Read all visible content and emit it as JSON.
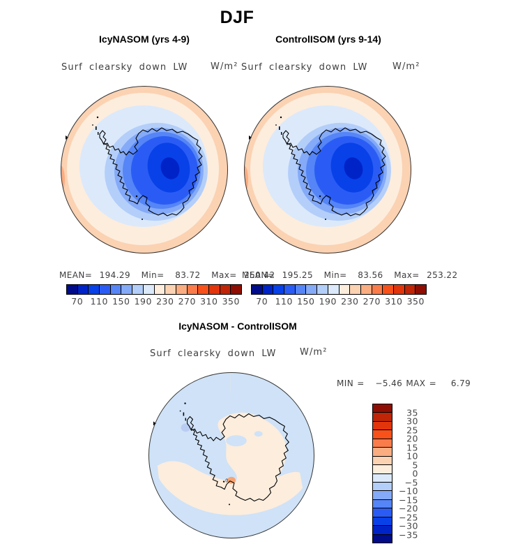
{
  "season_title": "DJF",
  "panels": {
    "left": {
      "title": "IcyNASOM (yrs 4-9)",
      "field": "Surf clearsky down LW",
      "units": "W/m²",
      "stats": "MEAN=  194.29   Min=   83.72   Max=  250.42"
    },
    "right": {
      "title": "ControlISOM (yrs 9-14)",
      "field": "Surf clearsky down LW",
      "units": "W/m²",
      "stats": "MEAN=  195.25   Min=   83.56   Max=  253.22"
    },
    "diff": {
      "title": "IcyNASOM - ControlISOM",
      "field": "Surf clearsky down LW",
      "units": "W/m²",
      "minmax": "MIN =   −5.46 MAX =    6.79"
    }
  },
  "colorbar_abs": {
    "ticks": [
      "70",
      "110",
      "150",
      "190",
      "230",
      "270",
      "310",
      "350"
    ]
  },
  "colorbar_diff": {
    "ticks": [
      "35",
      "30",
      "25",
      "20",
      "15",
      "10",
      "5",
      "0",
      "−5",
      "−10",
      "−15",
      "−20",
      "−25",
      "−30",
      "−35"
    ]
  },
  "palette_blue_to_red": [
    "#000c8a",
    "#0023c8",
    "#0841e8",
    "#2a5cf5",
    "#5585f6",
    "#84aaf8",
    "#b3cef9",
    "#dbe9fb",
    "#fdeddd",
    "#fbd2b2",
    "#fbad82",
    "#fa7c4b",
    "#f8511a",
    "#e2350c",
    "#c02508",
    "#8e0e04"
  ],
  "chart_data": {
    "type": "heatmap",
    "season": "DJF",
    "variable": "Surf clearsky down LW",
    "units": "W/m²",
    "projection": "south polar stereographic (Antarctica)",
    "panels": [
      {
        "name": "IcyNASOM (yrs 4-9)",
        "mean": 194.29,
        "min": 83.72,
        "max": 250.42,
        "colorbar_ticks": [
          70,
          110,
          150,
          190,
          230,
          270,
          310,
          350
        ],
        "colorbar_position": "bottom"
      },
      {
        "name": "ControlISOM (yrs 9-14)",
        "mean": 195.25,
        "min": 83.56,
        "max": 253.22,
        "colorbar_ticks": [
          70,
          110,
          150,
          190,
          230,
          270,
          310,
          350
        ],
        "colorbar_position": "bottom"
      },
      {
        "name": "IcyNASOM - ControlISOM",
        "min": -5.46,
        "max": 6.79,
        "colorbar_ticks": [
          35,
          30,
          25,
          20,
          15,
          10,
          5,
          0,
          -5,
          -10,
          -15,
          -20,
          -25,
          -30,
          -35
        ],
        "colorbar_position": "right"
      }
    ],
    "palette": "16-step blue-to-red diverging; low values dark blue over Antarctic plateau, high values red over ocean"
  }
}
